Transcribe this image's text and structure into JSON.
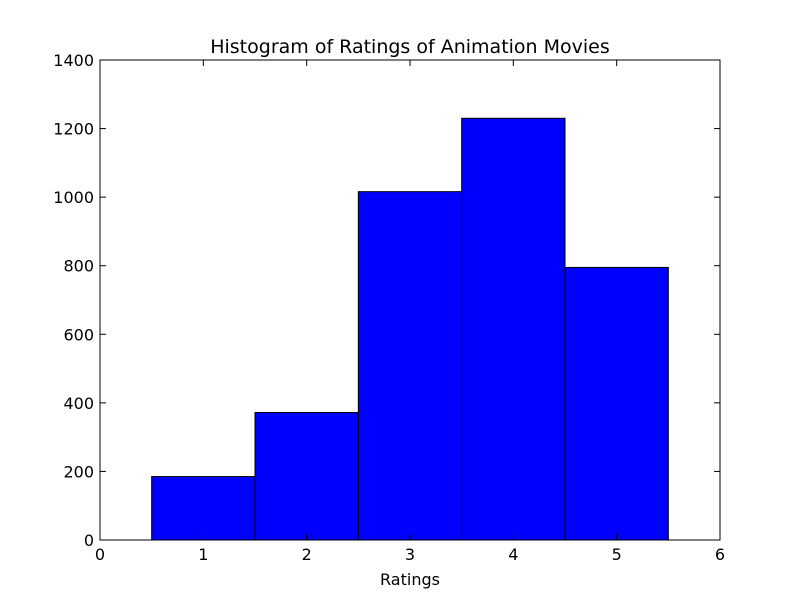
{
  "chart_data": {
    "type": "bar",
    "title": "Histogram of Ratings of Animation Movies",
    "xlabel": "Ratings",
    "ylabel": "",
    "categories": [
      "1",
      "2",
      "3",
      "4",
      "5"
    ],
    "bins": [
      {
        "x0": 0.5,
        "x1": 1.5,
        "value": 185
      },
      {
        "x0": 1.5,
        "x1": 2.5,
        "value": 372
      },
      {
        "x0": 2.5,
        "x1": 3.5,
        "value": 1016
      },
      {
        "x0": 3.5,
        "x1": 4.5,
        "value": 1230
      },
      {
        "x0": 4.5,
        "x1": 5.5,
        "value": 795
      }
    ],
    "values": [
      185,
      372,
      1016,
      1230,
      795
    ],
    "xlim": [
      0,
      6
    ],
    "ylim": [
      0,
      1400
    ],
    "xticks": [
      "0",
      "1",
      "2",
      "3",
      "4",
      "5",
      "6"
    ],
    "yticks": [
      "0",
      "200",
      "400",
      "600",
      "800",
      "1000",
      "1200",
      "1400"
    ],
    "grid": false,
    "legend": "none",
    "bar_color": "#0000ff",
    "edge_color": "#000000"
  }
}
